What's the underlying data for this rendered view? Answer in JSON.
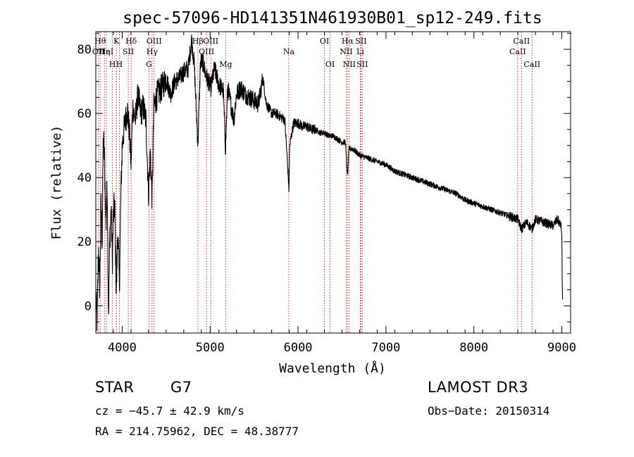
{
  "chart_data": {
    "type": "line",
    "title": "spec-57096-HD141351N461930B01_sp12-249.fits",
    "xlabel": "Wavelength (Å)",
    "ylabel": "Flux (relative)",
    "xlim": [
      3700,
      9100
    ],
    "ylim": [
      -8.5,
      85.5
    ],
    "xticks": [
      4000,
      5000,
      6000,
      7000,
      8000,
      9000
    ],
    "yticks": [
      0,
      20,
      40,
      60,
      80
    ],
    "series": [
      {
        "name": "spectrum",
        "anchors": [
          [
            3700,
            2
          ],
          [
            3715,
            -5
          ],
          [
            3730,
            18
          ],
          [
            3745,
            6
          ],
          [
            3760,
            32
          ],
          [
            3772,
            20
          ],
          [
            3785,
            53
          ],
          [
            3800,
            45
          ],
          [
            3815,
            25
          ],
          [
            3830,
            38
          ],
          [
            3845,
            -2
          ],
          [
            3860,
            22
          ],
          [
            3875,
            30
          ],
          [
            3888,
            14
          ],
          [
            3900,
            28
          ],
          [
            3915,
            32
          ],
          [
            3933,
            4
          ],
          [
            3950,
            24
          ],
          [
            3968,
            6
          ],
          [
            3985,
            34
          ],
          [
            4000,
            50
          ],
          [
            4030,
            57
          ],
          [
            4060,
            61
          ],
          [
            4080,
            55
          ],
          [
            4101,
            44
          ],
          [
            4120,
            62
          ],
          [
            4150,
            58
          ],
          [
            4180,
            66
          ],
          [
            4210,
            60
          ],
          [
            4240,
            62
          ],
          [
            4270,
            58
          ],
          [
            4300,
            35
          ],
          [
            4320,
            48
          ],
          [
            4340,
            33
          ],
          [
            4360,
            62
          ],
          [
            4400,
            66
          ],
          [
            4450,
            68
          ],
          [
            4500,
            71
          ],
          [
            4550,
            66
          ],
          [
            4600,
            70
          ],
          [
            4650,
            71
          ],
          [
            4700,
            73
          ],
          [
            4750,
            74
          ],
          [
            4790,
            83
          ],
          [
            4820,
            75
          ],
          [
            4861,
            50
          ],
          [
            4890,
            76
          ],
          [
            4920,
            76
          ],
          [
            4950,
            72
          ],
          [
            4980,
            70
          ],
          [
            5007,
            68
          ],
          [
            5050,
            74
          ],
          [
            5100,
            69
          ],
          [
            5150,
            67
          ],
          [
            5175,
            49
          ],
          [
            5200,
            68
          ],
          [
            5270,
            58
          ],
          [
            5300,
            66
          ],
          [
            5350,
            68
          ],
          [
            5400,
            66
          ],
          [
            5450,
            65
          ],
          [
            5500,
            64
          ],
          [
            5550,
            63
          ],
          [
            5600,
            71
          ],
          [
            5640,
            63
          ],
          [
            5700,
            60
          ],
          [
            5750,
            60
          ],
          [
            5800,
            59
          ],
          [
            5850,
            58
          ],
          [
            5890,
            40
          ],
          [
            5896,
            35
          ],
          [
            5905,
            50
          ],
          [
            5950,
            57
          ],
          [
            6000,
            57
          ],
          [
            6050,
            56
          ],
          [
            6100,
            56
          ],
          [
            6150,
            55
          ],
          [
            6200,
            55
          ],
          [
            6250,
            54
          ],
          [
            6300,
            54
          ],
          [
            6350,
            53
          ],
          [
            6400,
            53
          ],
          [
            6450,
            52
          ],
          [
            6500,
            51
          ],
          [
            6540,
            51
          ],
          [
            6563,
            40
          ],
          [
            6580,
            49
          ],
          [
            6620,
            49
          ],
          [
            6700,
            47
          ],
          [
            6800,
            46
          ],
          [
            6900,
            45
          ],
          [
            7000,
            44
          ],
          [
            7100,
            42
          ],
          [
            7200,
            41
          ],
          [
            7300,
            40
          ],
          [
            7400,
            39
          ],
          [
            7500,
            38
          ],
          [
            7600,
            37
          ],
          [
            7700,
            36
          ],
          [
            7800,
            35
          ],
          [
            7900,
            33
          ],
          [
            8000,
            32
          ],
          [
            8100,
            31
          ],
          [
            8200,
            30
          ],
          [
            8300,
            29
          ],
          [
            8400,
            28
          ],
          [
            8498,
            27
          ],
          [
            8542,
            24
          ],
          [
            8600,
            26
          ],
          [
            8662,
            24
          ],
          [
            8700,
            27
          ],
          [
            8800,
            26
          ],
          [
            8900,
            25
          ],
          [
            8950,
            27
          ],
          [
            8990,
            25
          ],
          [
            9000,
            22
          ],
          [
            9005,
            7
          ],
          [
            9010,
            0
          ]
        ]
      }
    ],
    "lines": [
      {
        "x": 3730,
        "label": "OII",
        "row": 2
      },
      {
        "x": 3750,
        "label": "Hθ",
        "row": 1
      },
      {
        "x": 3798,
        "label": "Hη",
        "row": 2
      },
      {
        "x": 3820,
        "label": "HeI",
        "row": 2
      },
      {
        "x": 3889,
        "label": "H",
        "row": 3
      },
      {
        "x": 3934,
        "label": "K",
        "row": 1
      },
      {
        "x": 3968,
        "label": "H",
        "row": 3
      },
      {
        "x": 4069,
        "label": "SII",
        "row": 2
      },
      {
        "x": 4102,
        "label": "Hδ",
        "row": 1
      },
      {
        "x": 4304,
        "label": "G",
        "row": 3
      },
      {
        "x": 4340,
        "label": "Hγ",
        "row": 2
      },
      {
        "x": 4363,
        "label": "OIII",
        "row": 1
      },
      {
        "x": 4861,
        "label": "Hβ",
        "row": 1
      },
      {
        "x": 4959,
        "label": "OIII",
        "row": 2
      },
      {
        "x": 5007,
        "label": "OIII",
        "row": 1
      },
      {
        "x": 5177,
        "label": "Mg",
        "row": 3
      },
      {
        "x": 5895,
        "label": "Na",
        "row": 2
      },
      {
        "x": 6300,
        "label": "OI",
        "row": 1
      },
      {
        "x": 6364,
        "label": "OI",
        "row": 3
      },
      {
        "x": 6548,
        "label": "NII",
        "row": 2
      },
      {
        "x": 6563,
        "label": "Hα",
        "row": 1
      },
      {
        "x": 6583,
        "label": "NII",
        "row": 3
      },
      {
        "x": 6708,
        "label": "Li",
        "row": 2
      },
      {
        "x": 6716,
        "label": "SII",
        "row": 1
      },
      {
        "x": 6731,
        "label": "SII",
        "row": 3
      },
      {
        "x": 8498,
        "label": "CaII",
        "row": 2
      },
      {
        "x": 8542,
        "label": "CaII",
        "row": 1
      },
      {
        "x": 8662,
        "label": "CaII",
        "row": 3
      }
    ]
  },
  "info": {
    "class": "STAR",
    "subclass": "G7",
    "survey": "LAMOST DR3",
    "redshift": "cz = −45.7 ± 42.9 km/s",
    "obs_date": "Obs−Date: 20150314",
    "coords": "RA = 214.75962, DEC =  48.38777"
  }
}
